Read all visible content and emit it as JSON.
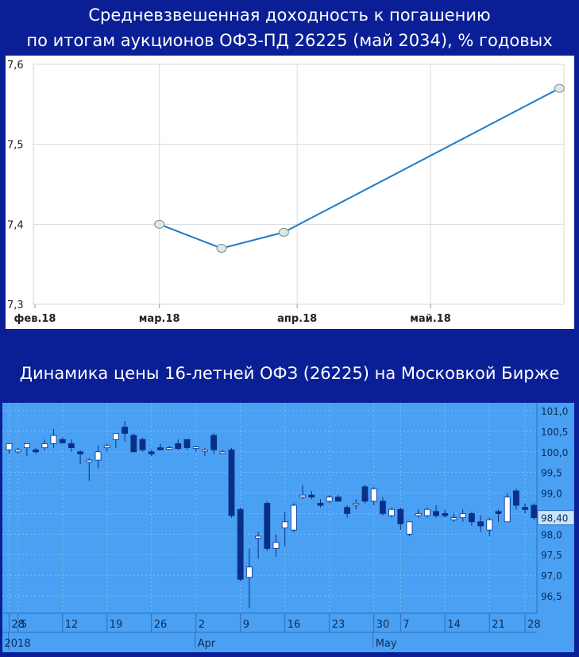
{
  "header": {
    "title_line1": "Средневзвешенная доходность к погашению",
    "title_line2": "по итогам аукционов ОФЗ-ПД 26225 (май 2034), % годовых"
  },
  "section2": {
    "title": "Динамика цены 16-летней ОФЗ (26225) на Московкой Бирже"
  },
  "colors": {
    "background": "#0a1f96",
    "line": "#1f7bc6",
    "marker": "#dfe9e4",
    "candle_panel": "#4aa0f2",
    "candle_up": "#ffffff",
    "candle_down": "#0a2f86",
    "price_label_bg": "#c9e3fb"
  },
  "chart_data": [
    {
      "type": "line",
      "title": "Средневзвешенная доходность к погашению по итогам аукционов ОФЗ-ПД 26225 (май 2034), % годовых",
      "x_ticks": [
        "фев.18",
        "мар.18",
        "апр.18",
        "май.18"
      ],
      "y_ticks": [
        "7,3",
        "7,4",
        "7,5",
        "7,6"
      ],
      "ylim": [
        7.3,
        7.6
      ],
      "grid": true,
      "points": [
        {
          "x": "2018-03-01",
          "y": 7.4
        },
        {
          "x": "2018-03-15",
          "y": 7.37
        },
        {
          "x": "2018-03-29",
          "y": 7.39
        },
        {
          "x": "2018-05-30",
          "y": 7.57
        }
      ]
    },
    {
      "type": "candlestick",
      "title": "Динамика цены 16-летней ОФЗ (26225) на Московкой Бирже",
      "ylim": [
        96.0,
        101.0
      ],
      "y_ticks": [
        "101,0",
        "100,5",
        "100,0",
        "99,5",
        "99,0",
        "98,5",
        "98,0",
        "97,5",
        "97,0",
        "96,5"
      ],
      "x_day_labels": [
        {
          "label": "28",
          "index": 0
        },
        {
          "label": "5",
          "index": 1
        },
        {
          "label": "12",
          "index": 6
        },
        {
          "label": "19",
          "index": 11
        },
        {
          "label": "26",
          "index": 16
        },
        {
          "label": "2",
          "index": 21
        },
        {
          "label": "9",
          "index": 26
        },
        {
          "label": "16",
          "index": 31
        },
        {
          "label": "23",
          "index": 36
        },
        {
          "label": "30",
          "index": 41
        },
        {
          "label": "7",
          "index": 44
        },
        {
          "label": "14",
          "index": 49
        },
        {
          "label": "21",
          "index": 54
        },
        {
          "label": "28",
          "index": 58
        }
      ],
      "x_period_labels": [
        {
          "label": "2018",
          "index": 0
        },
        {
          "label": "Apr",
          "index": 21
        },
        {
          "label": "May",
          "index": 41
        }
      ],
      "last_price": "98,40",
      "candles": [
        {
          "o": 100.05,
          "h": 100.2,
          "l": 99.95,
          "c": 100.2
        },
        {
          "o": 100.0,
          "h": 100.1,
          "l": 99.95,
          "c": 100.05
        },
        {
          "o": 100.1,
          "h": 100.2,
          "l": 99.9,
          "c": 100.2
        },
        {
          "o": 100.05,
          "h": 100.1,
          "l": 99.95,
          "c": 100.0
        },
        {
          "o": 100.1,
          "h": 100.3,
          "l": 100.05,
          "c": 100.2
        },
        {
          "o": 100.2,
          "h": 100.55,
          "l": 100.1,
          "c": 100.4
        },
        {
          "o": 100.3,
          "h": 100.35,
          "l": 100.2,
          "c": 100.22
        },
        {
          "o": 100.2,
          "h": 100.3,
          "l": 100.0,
          "c": 100.1
        },
        {
          "o": 100.0,
          "h": 100.05,
          "l": 99.7,
          "c": 99.95
        },
        {
          "o": 99.75,
          "h": 99.85,
          "l": 99.3,
          "c": 99.8
        },
        {
          "o": 99.8,
          "h": 100.15,
          "l": 99.6,
          "c": 100.0
        },
        {
          "o": 100.1,
          "h": 100.2,
          "l": 100.0,
          "c": 100.15
        },
        {
          "o": 100.3,
          "h": 100.45,
          "l": 100.1,
          "c": 100.45
        },
        {
          "o": 100.6,
          "h": 100.75,
          "l": 100.25,
          "c": 100.45
        },
        {
          "o": 100.4,
          "h": 100.45,
          "l": 100.0,
          "c": 100.0
        },
        {
          "o": 100.3,
          "h": 100.35,
          "l": 100.0,
          "c": 100.05
        },
        {
          "o": 100.0,
          "h": 100.05,
          "l": 99.9,
          "c": 99.95
        },
        {
          "o": 100.1,
          "h": 100.2,
          "l": 100.05,
          "c": 100.05
        },
        {
          "o": 100.1,
          "h": 100.15,
          "l": 100.05,
          "c": 100.1
        },
        {
          "o": 100.2,
          "h": 100.3,
          "l": 100.05,
          "c": 100.08
        },
        {
          "o": 100.3,
          "h": 100.3,
          "l": 100.05,
          "c": 100.1
        },
        {
          "o": 100.1,
          "h": 100.15,
          "l": 100.0,
          "c": 100.12
        },
        {
          "o": 100.05,
          "h": 100.1,
          "l": 99.9,
          "c": 100.05
        },
        {
          "o": 100.4,
          "h": 100.45,
          "l": 99.95,
          "c": 100.05
        },
        {
          "o": 100.0,
          "h": 100.05,
          "l": 99.95,
          "c": 100.0
        },
        {
          "o": 100.05,
          "h": 100.1,
          "l": 98.4,
          "c": 98.45
        },
        {
          "o": 98.6,
          "h": 98.65,
          "l": 96.85,
          "c": 96.9
        },
        {
          "o": 96.95,
          "h": 97.65,
          "l": 96.2,
          "c": 97.2
        },
        {
          "o": 97.9,
          "h": 98.05,
          "l": 97.4,
          "c": 97.95
        },
        {
          "o": 98.75,
          "h": 98.8,
          "l": 97.6,
          "c": 97.65
        },
        {
          "o": 97.65,
          "h": 98.0,
          "l": 97.45,
          "c": 97.8
        },
        {
          "o": 98.15,
          "h": 98.55,
          "l": 97.7,
          "c": 98.3
        },
        {
          "o": 98.1,
          "h": 98.75,
          "l": 98.05,
          "c": 98.7
        },
        {
          "o": 98.9,
          "h": 99.2,
          "l": 98.85,
          "c": 98.95
        },
        {
          "o": 98.95,
          "h": 99.05,
          "l": 98.85,
          "c": 98.9
        },
        {
          "o": 98.75,
          "h": 98.85,
          "l": 98.65,
          "c": 98.7
        },
        {
          "o": 98.8,
          "h": 98.95,
          "l": 98.75,
          "c": 98.9
        },
        {
          "o": 98.9,
          "h": 98.95,
          "l": 98.8,
          "c": 98.8
        },
        {
          "o": 98.65,
          "h": 98.7,
          "l": 98.4,
          "c": 98.5
        },
        {
          "o": 98.75,
          "h": 98.85,
          "l": 98.6,
          "c": 98.75
        },
        {
          "o": 99.15,
          "h": 99.2,
          "l": 98.75,
          "c": 98.8
        },
        {
          "o": 98.8,
          "h": 99.15,
          "l": 98.7,
          "c": 99.1
        },
        {
          "o": 98.8,
          "h": 98.9,
          "l": 98.45,
          "c": 98.5
        },
        {
          "o": 98.45,
          "h": 98.65,
          "l": 98.4,
          "c": 98.6
        },
        {
          "o": 98.6,
          "h": 98.65,
          "l": 98.1,
          "c": 98.25
        },
        {
          "o": 98.0,
          "h": 98.3,
          "l": 97.95,
          "c": 98.3
        },
        {
          "o": 98.45,
          "h": 98.6,
          "l": 98.4,
          "c": 98.5
        },
        {
          "o": 98.45,
          "h": 98.65,
          "l": 98.4,
          "c": 98.6
        },
        {
          "o": 98.55,
          "h": 98.7,
          "l": 98.4,
          "c": 98.45
        },
        {
          "o": 98.5,
          "h": 98.6,
          "l": 98.4,
          "c": 98.45
        },
        {
          "o": 98.35,
          "h": 98.5,
          "l": 98.3,
          "c": 98.4
        },
        {
          "o": 98.4,
          "h": 98.6,
          "l": 98.3,
          "c": 98.5
        },
        {
          "o": 98.5,
          "h": 98.55,
          "l": 98.2,
          "c": 98.3
        },
        {
          "o": 98.3,
          "h": 98.45,
          "l": 98.05,
          "c": 98.2
        },
        {
          "o": 98.1,
          "h": 98.4,
          "l": 97.95,
          "c": 98.35
        },
        {
          "o": 98.55,
          "h": 98.6,
          "l": 98.3,
          "c": 98.5
        },
        {
          "o": 98.3,
          "h": 99.0,
          "l": 98.3,
          "c": 98.9
        },
        {
          "o": 99.05,
          "h": 99.1,
          "l": 98.6,
          "c": 98.7
        },
        {
          "o": 98.65,
          "h": 98.75,
          "l": 98.5,
          "c": 98.6
        },
        {
          "o": 98.7,
          "h": 98.75,
          "l": 98.35,
          "c": 98.4
        }
      ]
    }
  ]
}
